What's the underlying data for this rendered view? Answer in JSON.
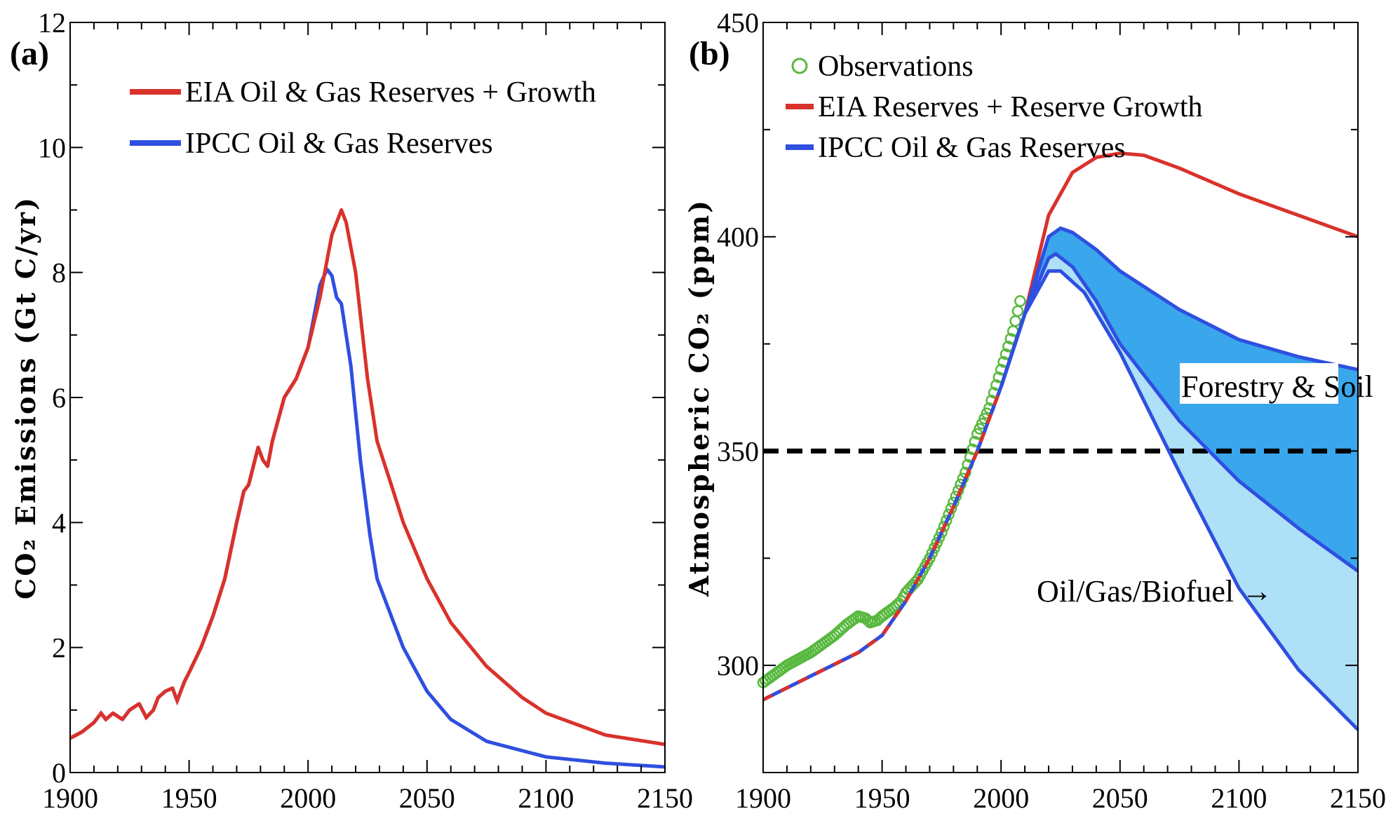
{
  "chart_data": [
    {
      "type": "line",
      "panel_label": "(a)",
      "title": "",
      "xlabel": "",
      "ylabel": "CO₂ Emissions (Gt C/yr)",
      "xlim": [
        1900,
        2150
      ],
      "ylim": [
        0,
        12
      ],
      "x_ticks": [
        1900,
        1950,
        2000,
        2050,
        2100,
        2150
      ],
      "y_ticks": [
        0,
        2,
        4,
        6,
        8,
        10,
        12
      ],
      "grid": false,
      "legend_position": "top-left",
      "series": [
        {
          "name": "EIA Oil & Gas Reserves + Growth",
          "color": "#d9322b",
          "points": [
            [
              1900,
              0.55
            ],
            [
              1905,
              0.65
            ],
            [
              1910,
              0.8
            ],
            [
              1913,
              0.95
            ],
            [
              1915,
              0.85
            ],
            [
              1918,
              0.95
            ],
            [
              1920,
              0.9
            ],
            [
              1922,
              0.85
            ],
            [
              1925,
              1.0
            ],
            [
              1929,
              1.1
            ],
            [
              1932,
              0.88
            ],
            [
              1935,
              1.0
            ],
            [
              1937,
              1.2
            ],
            [
              1940,
              1.3
            ],
            [
              1943,
              1.35
            ],
            [
              1945,
              1.15
            ],
            [
              1948,
              1.45
            ],
            [
              1950,
              1.6
            ],
            [
              1955,
              2.0
            ],
            [
              1960,
              2.5
            ],
            [
              1965,
              3.1
            ],
            [
              1970,
              4.0
            ],
            [
              1973,
              4.5
            ],
            [
              1975,
              4.6
            ],
            [
              1979,
              5.2
            ],
            [
              1981,
              5.0
            ],
            [
              1983,
              4.9
            ],
            [
              1985,
              5.3
            ],
            [
              1990,
              6.0
            ],
            [
              1995,
              6.3
            ],
            [
              2000,
              6.8
            ],
            [
              2005,
              7.6
            ],
            [
              2010,
              8.6
            ],
            [
              2014,
              9.0
            ],
            [
              2016,
              8.8
            ],
            [
              2020,
              8.0
            ],
            [
              2025,
              6.3
            ],
            [
              2029,
              5.3
            ],
            [
              2035,
              4.6
            ],
            [
              2040,
              4.0
            ],
            [
              2050,
              3.1
            ],
            [
              2060,
              2.4
            ],
            [
              2075,
              1.7
            ],
            [
              2090,
              1.2
            ],
            [
              2100,
              0.95
            ],
            [
              2125,
              0.6
            ],
            [
              2150,
              0.45
            ]
          ]
        },
        {
          "name": "IPCC Oil & Gas Reserves",
          "color": "#2f4fe0",
          "points": [
            [
              1900,
              0.55
            ],
            [
              1905,
              0.65
            ],
            [
              1910,
              0.8
            ],
            [
              1913,
              0.95
            ],
            [
              1915,
              0.85
            ],
            [
              1918,
              0.95
            ],
            [
              1920,
              0.9
            ],
            [
              1922,
              0.85
            ],
            [
              1925,
              1.0
            ],
            [
              1929,
              1.1
            ],
            [
              1932,
              0.88
            ],
            [
              1935,
              1.0
            ],
            [
              1937,
              1.2
            ],
            [
              1940,
              1.3
            ],
            [
              1943,
              1.35
            ],
            [
              1945,
              1.15
            ],
            [
              1948,
              1.45
            ],
            [
              1950,
              1.6
            ],
            [
              1955,
              2.0
            ],
            [
              1960,
              2.5
            ],
            [
              1965,
              3.1
            ],
            [
              1970,
              4.0
            ],
            [
              1973,
              4.5
            ],
            [
              1975,
              4.6
            ],
            [
              1979,
              5.2
            ],
            [
              1981,
              5.0
            ],
            [
              1983,
              4.9
            ],
            [
              1985,
              5.3
            ],
            [
              1990,
              6.0
            ],
            [
              1995,
              6.3
            ],
            [
              2000,
              6.8
            ],
            [
              2005,
              7.8
            ],
            [
              2008,
              8.05
            ],
            [
              2010,
              7.95
            ],
            [
              2012,
              7.6
            ],
            [
              2014,
              7.5
            ],
            [
              2018,
              6.5
            ],
            [
              2022,
              5.0
            ],
            [
              2026,
              3.8
            ],
            [
              2029,
              3.1
            ],
            [
              2035,
              2.5
            ],
            [
              2040,
              2.0
            ],
            [
              2050,
              1.3
            ],
            [
              2060,
              0.85
            ],
            [
              2075,
              0.5
            ],
            [
              2100,
              0.25
            ],
            [
              2125,
              0.15
            ],
            [
              2150,
              0.09
            ]
          ]
        }
      ]
    },
    {
      "type": "line",
      "panel_label": "(b)",
      "title": "",
      "xlabel": "",
      "ylabel": "Atmospheric CO₂ (ppm)",
      "xlim": [
        1900,
        2150
      ],
      "ylim": [
        275,
        450
      ],
      "x_ticks": [
        1900,
        1950,
        2000,
        2050,
        2100,
        2150
      ],
      "y_ticks": [
        300,
        350,
        400,
        450
      ],
      "grid": false,
      "legend_position": "top-left",
      "reference_line": {
        "y": 350,
        "style": "dashed",
        "color": "#000000"
      },
      "annotations": [
        "Forestry & Soil",
        "Oil/Gas/Biofuel →"
      ],
      "series": [
        {
          "name": "Observations",
          "kind": "scatter",
          "marker": "open-circle",
          "color": "#57b83e",
          "points": [
            [
              1900,
              296
            ],
            [
              1905,
              298
            ],
            [
              1910,
              300
            ],
            [
              1915,
              301.5
            ],
            [
              1920,
              303
            ],
            [
              1925,
              305
            ],
            [
              1930,
              307
            ],
            [
              1935,
              309.5
            ],
            [
              1940,
              311.5
            ],
            [
              1943,
              311
            ],
            [
              1945,
              310
            ],
            [
              1948,
              310.5
            ],
            [
              1950,
              311.5
            ],
            [
              1955,
              313.5
            ],
            [
              1958,
              315
            ],
            [
              1960,
              317
            ],
            [
              1965,
              320
            ],
            [
              1970,
              325
            ],
            [
              1975,
              331
            ],
            [
              1980,
              338
            ],
            [
              1985,
              345
            ],
            [
              1990,
              354
            ],
            [
              1995,
              360
            ],
            [
              2000,
              369
            ],
            [
              2005,
              378
            ],
            [
              2008,
              385
            ]
          ]
        },
        {
          "name": "EIA Reserves + Reserve Growth",
          "color": "#d9322b",
          "points": [
            [
              1900,
              292
            ],
            [
              1920,
              297.5
            ],
            [
              1940,
              303
            ],
            [
              1950,
              307
            ],
            [
              1960,
              315
            ],
            [
              1970,
              325
            ],
            [
              1980,
              337
            ],
            [
              1990,
              350
            ],
            [
              2000,
              365
            ],
            [
              2010,
              382
            ],
            [
              2020,
              405
            ],
            [
              2030,
              415
            ],
            [
              2040,
              418.5
            ],
            [
              2050,
              419.5
            ],
            [
              2060,
              419
            ],
            [
              2075,
              416
            ],
            [
              2100,
              410
            ],
            [
              2125,
              405
            ],
            [
              2150,
              400
            ]
          ]
        },
        {
          "name": "IPCC Oil & Gas Reserves",
          "color": "#2f4fe0",
          "points": [
            [
              1900,
              292
            ],
            [
              1920,
              297.5
            ],
            [
              1940,
              303
            ],
            [
              1950,
              307
            ],
            [
              1960,
              315
            ],
            [
              1970,
              325
            ],
            [
              1980,
              337
            ],
            [
              1990,
              350
            ],
            [
              2000,
              365
            ],
            [
              2010,
              382
            ],
            [
              2020,
              392
            ],
            [
              2025,
              392
            ],
            [
              2035,
              387
            ],
            [
              2050,
              373
            ],
            [
              2075,
              345
            ],
            [
              2100,
              318
            ],
            [
              2125,
              299
            ],
            [
              2150,
              285
            ]
          ]
        },
        {
          "name": "",
          "color": "#2f4fe0",
          "points": [
            [
              2000,
              365
            ],
            [
              2010,
              382
            ],
            [
              2020,
              395
            ],
            [
              2023,
              396
            ],
            [
              2030,
              393
            ],
            [
              2040,
              385
            ],
            [
              2050,
              375
            ],
            [
              2075,
              357
            ],
            [
              2100,
              343
            ],
            [
              2125,
              332
            ],
            [
              2150,
              322
            ]
          ]
        },
        {
          "name": "",
          "color": "#2f4fe0",
          "points": [
            [
              2000,
              365
            ],
            [
              2010,
              382
            ],
            [
              2020,
              400
            ],
            [
              2025,
              402
            ],
            [
              2030,
              401
            ],
            [
              2040,
              397
            ],
            [
              2050,
              392
            ],
            [
              2075,
              383
            ],
            [
              2100,
              376
            ],
            [
              2125,
              372
            ],
            [
              2150,
              369
            ]
          ]
        }
      ]
    }
  ],
  "legend": {
    "a": [
      {
        "label": "EIA Oil & Gas Reserves + Growth",
        "color": "#d9322b",
        "marker": "line"
      },
      {
        "label": "IPCC Oil & Gas Reserves",
        "color": "#2f4fe0",
        "marker": "line"
      }
    ],
    "b": [
      {
        "label": "Observations",
        "color": "#57b83e",
        "marker": "circle"
      },
      {
        "label": "EIA Reserves + Reserve Growth",
        "color": "#d9322b",
        "marker": "line"
      },
      {
        "label": "IPCC Oil & Gas Reserves",
        "color": "#2f4fe0",
        "marker": "line"
      }
    ]
  },
  "colors": {
    "fill_dark": "#3aa6ec",
    "fill_light": "#aee0f8",
    "dashed": "#000000"
  }
}
